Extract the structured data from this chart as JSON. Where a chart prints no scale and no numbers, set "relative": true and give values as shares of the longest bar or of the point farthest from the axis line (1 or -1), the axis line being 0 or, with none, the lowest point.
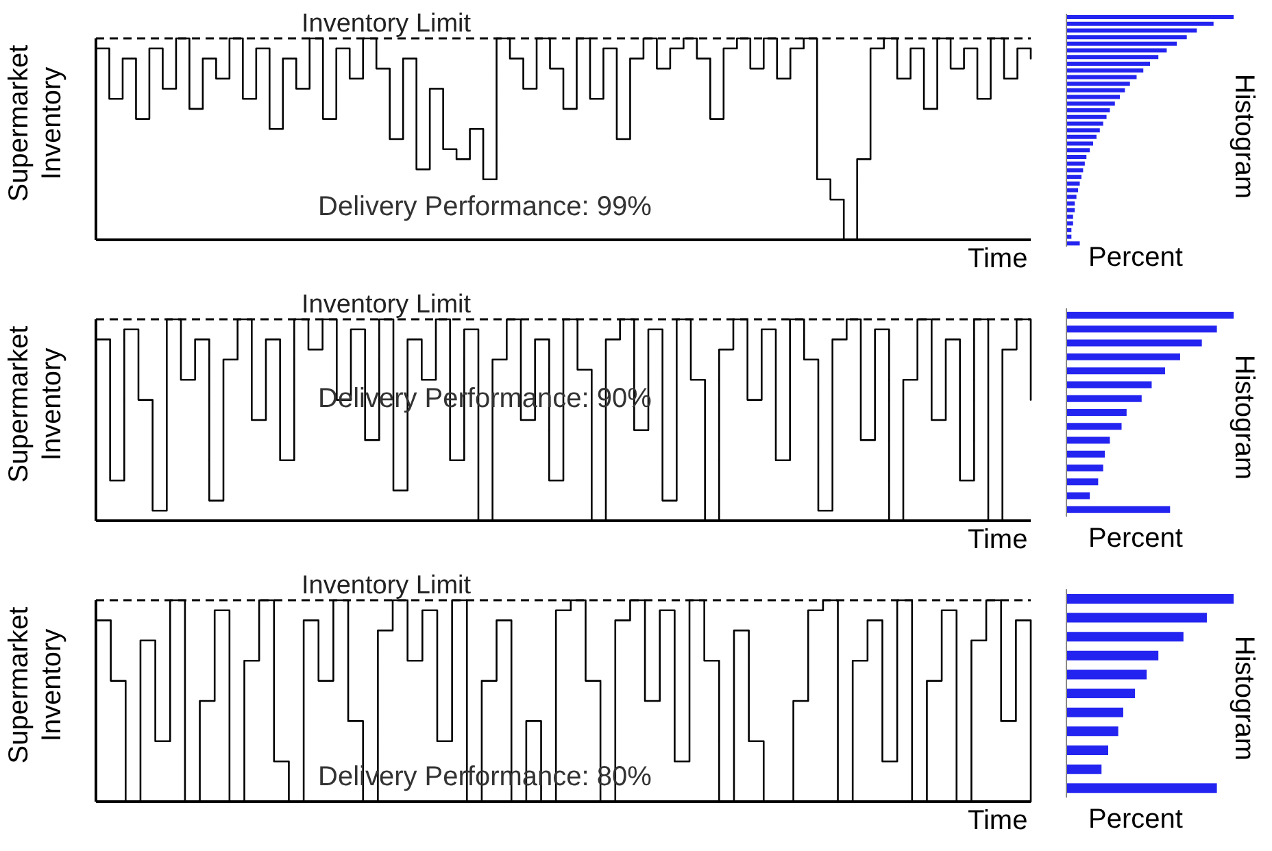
{
  "chart_data": [
    {
      "type": "step",
      "relative": true,
      "ylabel": "Supermarket Inventory",
      "xlabel": "Time",
      "annotations": [
        "Delivery Performance: 99%"
      ],
      "marker": "none",
      "line_style": "solid",
      "ref_lines": [
        {
          "axis": "y",
          "value": 1,
          "label": "Inventory Limit",
          "line_style": "dashed",
          "color": "#000000"
        }
      ],
      "categories": [
        null,
        null,
        null,
        null,
        null,
        null,
        null,
        null,
        null,
        null,
        null,
        null,
        null,
        null,
        null,
        null,
        null,
        null,
        null,
        null,
        null,
        null,
        null,
        null,
        null,
        null,
        null,
        null,
        null,
        null,
        null,
        null,
        null,
        null,
        null,
        null,
        null,
        null,
        null,
        null,
        null,
        null,
        null,
        null,
        null,
        null,
        null,
        null,
        null,
        null,
        null,
        null,
        null,
        null,
        null,
        null,
        null,
        null,
        null,
        null,
        null,
        null,
        null,
        null,
        null,
        null,
        null,
        null,
        null,
        null,
        null
      ],
      "series": [
        {
          "color": "#000000",
          "values": [
            0.95,
            0.7,
            0.9,
            0.6,
            0.95,
            0.75,
            1,
            0.65,
            0.9,
            0.8,
            1,
            0.7,
            0.95,
            0.55,
            0.9,
            0.75,
            1,
            0.6,
            0.95,
            0.8,
            1,
            0.85,
            0.5,
            0.9,
            0.35,
            0.75,
            0.45,
            0.4,
            0.55,
            0.3,
            1,
            0.9,
            0.75,
            1,
            0.85,
            0.65,
            1,
            0.7,
            0.95,
            0.5,
            0.9,
            1,
            0.85,
            0.95,
            1,
            0.9,
            0.6,
            0.95,
            1,
            0.85,
            1,
            0.8,
            0.95,
            1,
            0.3,
            0.2,
            0.0,
            0.4,
            0.95,
            1,
            0.8,
            0.95,
            0.65,
            1,
            0.85,
            0.95,
            0.7,
            1,
            0.8,
            0.95,
            0.9
          ]
        }
      ]
    },
    {
      "type": "bar",
      "orientation": "horizontal",
      "relative": true,
      "xlabel": "Percent",
      "ylabel": "Histogram",
      "color": "#2424f0",
      "categories": [
        null,
        null,
        null,
        null,
        null,
        null,
        null,
        null,
        null,
        null,
        null,
        null,
        null,
        null,
        null,
        null,
        null,
        null,
        null,
        null,
        null,
        null,
        null,
        null,
        null,
        null,
        null,
        null,
        null,
        null,
        null,
        null,
        null,
        null,
        null
      ],
      "values": [
        1.0,
        0.88,
        0.78,
        0.72,
        0.66,
        0.6,
        0.55,
        0.5,
        0.46,
        0.42,
        0.38,
        0.35,
        0.32,
        0.29,
        0.26,
        0.24,
        0.22,
        0.2,
        0.18,
        0.16,
        0.14,
        0.12,
        0.11,
        0.1,
        0.09,
        0.08,
        0.07,
        0.06,
        0.05,
        0.05,
        0.04,
        0.04,
        0.03,
        0.03,
        0.08
      ]
    },
    {
      "type": "step",
      "relative": true,
      "ylabel": "Supermarket Inventory",
      "xlabel": "Time",
      "annotations": [
        "Delivery Performance: 90%"
      ],
      "marker": "none",
      "line_style": "solid",
      "ref_lines": [
        {
          "axis": "y",
          "value": 1,
          "label": "Inventory Limit",
          "line_style": "dashed",
          "color": "#000000"
        }
      ],
      "categories": [
        null,
        null,
        null,
        null,
        null,
        null,
        null,
        null,
        null,
        null,
        null,
        null,
        null,
        null,
        null,
        null,
        null,
        null,
        null,
        null,
        null,
        null,
        null,
        null,
        null,
        null,
        null,
        null,
        null,
        null,
        null,
        null,
        null,
        null,
        null,
        null,
        null,
        null,
        null,
        null,
        null,
        null,
        null,
        null,
        null,
        null,
        null,
        null,
        null,
        null,
        null,
        null,
        null,
        null,
        null,
        null,
        null,
        null,
        null,
        null,
        null,
        null,
        null,
        null,
        null,
        null,
        null
      ],
      "series": [
        {
          "color": "#000000",
          "values": [
            0.9,
            0.2,
            0.95,
            0.6,
            0.05,
            1,
            0.7,
            0.9,
            0.1,
            0.8,
            1,
            0.5,
            0.9,
            0.3,
            1,
            0.85,
            1,
            0.6,
            0.95,
            0.4,
            1,
            0.15,
            0.9,
            0.7,
            1,
            0.3,
            0.95,
            0.0,
            0.8,
            1,
            0.5,
            0.9,
            0.2,
            1,
            0.75,
            0.0,
            0.9,
            1,
            0.45,
            0.95,
            0.1,
            1,
            0.7,
            0.0,
            0.85,
            1,
            0.6,
            0.95,
            0.3,
            1,
            0.8,
            0.05,
            0.9,
            1,
            0.4,
            0.95,
            0.0,
            0.7,
            1,
            0.5,
            0.9,
            0.2,
            1,
            0.0,
            0.85,
            1,
            0.6
          ]
        }
      ]
    },
    {
      "type": "bar",
      "orientation": "horizontal",
      "relative": true,
      "xlabel": "Percent",
      "ylabel": "Histogram",
      "color": "#2424f0",
      "categories": [
        null,
        null,
        null,
        null,
        null,
        null,
        null,
        null,
        null,
        null,
        null,
        null,
        null,
        null,
        null
      ],
      "values": [
        1.0,
        0.9,
        0.81,
        0.68,
        0.59,
        0.51,
        0.45,
        0.36,
        0.33,
        0.26,
        0.23,
        0.22,
        0.19,
        0.14,
        0.62
      ]
    },
    {
      "type": "step",
      "relative": true,
      "ylabel": "Supermarket Inventory",
      "xlabel": "Time",
      "annotations": [
        "Delivery Performance: 80%"
      ],
      "marker": "none",
      "line_style": "solid",
      "ref_lines": [
        {
          "axis": "y",
          "value": 1,
          "label": "Inventory Limit",
          "line_style": "dashed",
          "color": "#000000"
        }
      ],
      "categories": [
        null,
        null,
        null,
        null,
        null,
        null,
        null,
        null,
        null,
        null,
        null,
        null,
        null,
        null,
        null,
        null,
        null,
        null,
        null,
        null,
        null,
        null,
        null,
        null,
        null,
        null,
        null,
        null,
        null,
        null,
        null,
        null,
        null,
        null,
        null,
        null,
        null,
        null,
        null,
        null,
        null,
        null,
        null,
        null,
        null,
        null,
        null,
        null,
        null,
        null,
        null,
        null,
        null,
        null,
        null,
        null,
        null,
        null,
        null,
        null,
        null,
        null,
        null,
        null
      ],
      "series": [
        {
          "color": "#000000",
          "values": [
            0.9,
            0.6,
            0.0,
            0.8,
            0.3,
            1,
            0.0,
            0.5,
            0.95,
            0.0,
            0.7,
            1,
            0.2,
            0.0,
            0.9,
            0.6,
            1,
            0.4,
            0.0,
            0.85,
            1,
            0.7,
            0.95,
            0.3,
            1,
            0.0,
            0.6,
            0.9,
            0.0,
            0.4,
            0.0,
            0.95,
            1,
            0.6,
            0.0,
            0.9,
            1,
            0.5,
            0.95,
            0.2,
            1,
            0.7,
            0.0,
            0.85,
            0.3,
            0.0,
            0.0,
            0.5,
            0.95,
            1,
            0.0,
            0.7,
            0.9,
            0.2,
            1,
            0.0,
            0.6,
            0.95,
            0.0,
            0.8,
            1,
            0.4,
            0.9,
            0.0
          ]
        }
      ]
    },
    {
      "type": "bar",
      "orientation": "horizontal",
      "relative": true,
      "xlabel": "Percent",
      "ylabel": "Histogram",
      "color": "#2424f0",
      "categories": [
        null,
        null,
        null,
        null,
        null,
        null,
        null,
        null,
        null,
        null,
        null
      ],
      "values": [
        1.0,
        0.84,
        0.7,
        0.55,
        0.48,
        0.41,
        0.34,
        0.31,
        0.25,
        0.21,
        0.9
      ]
    }
  ]
}
